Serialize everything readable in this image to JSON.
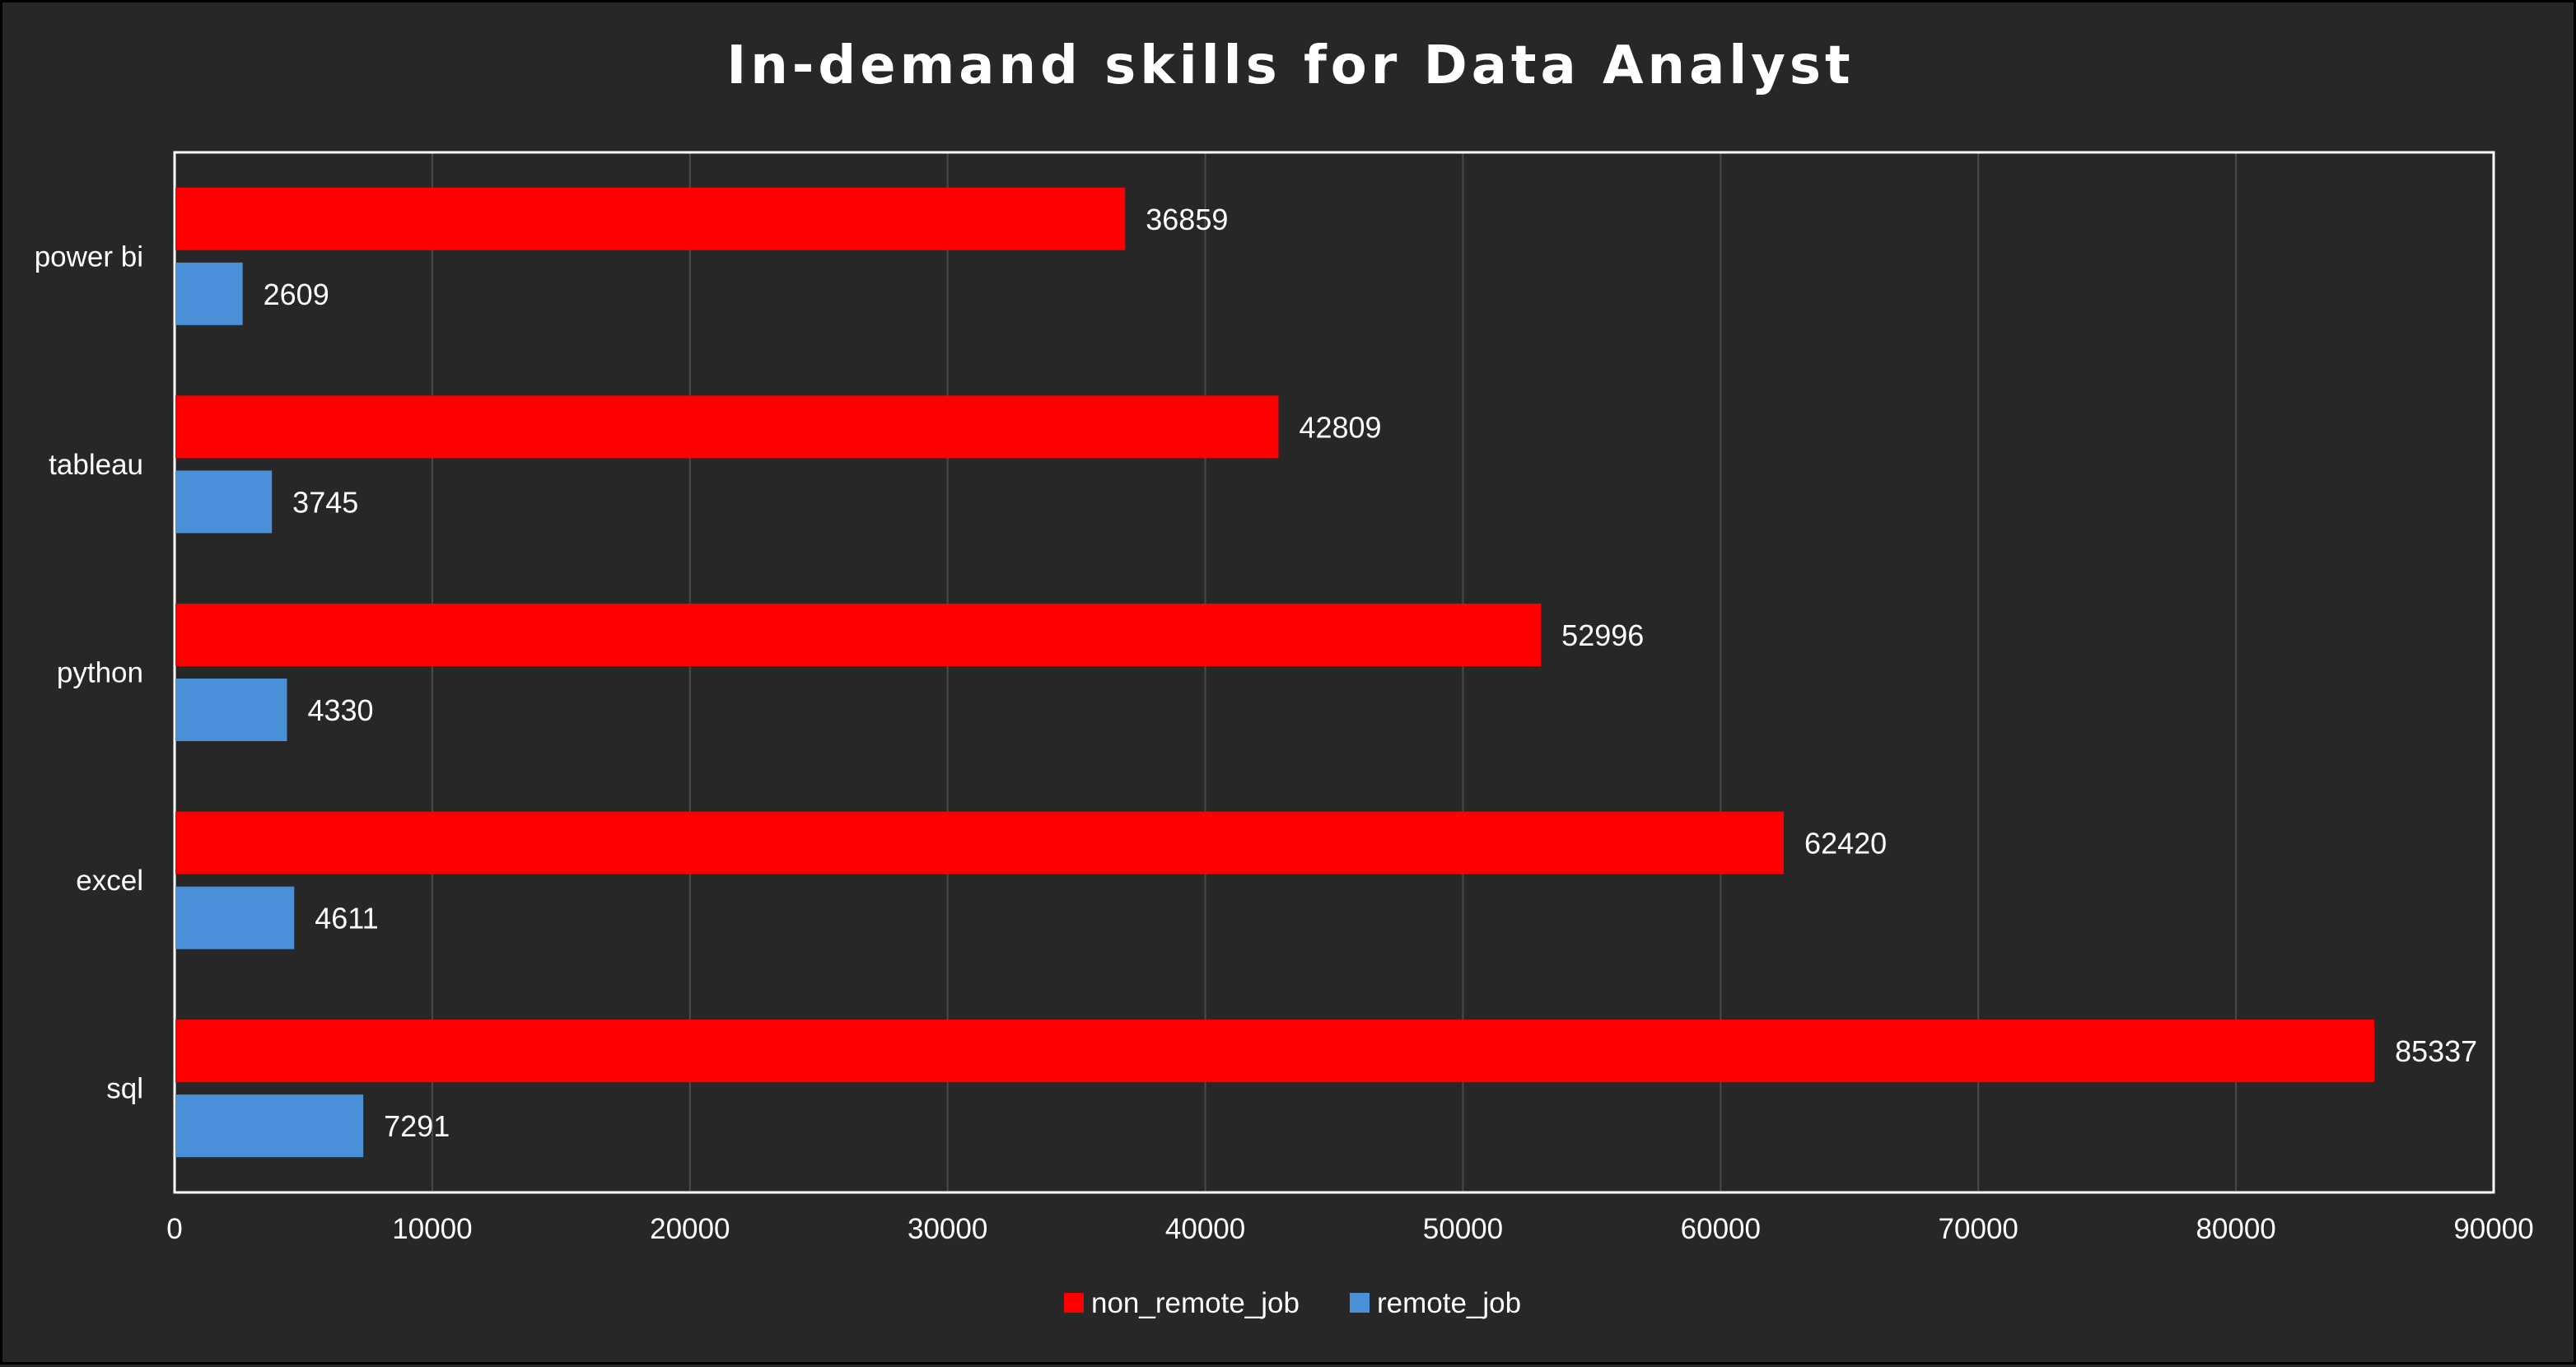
{
  "chart_data": {
    "type": "bar",
    "orientation": "horizontal",
    "title": "In-demand skills for Data Analyst",
    "categories": [
      "power bi",
      "tableau",
      "python",
      "excel",
      "sql"
    ],
    "series": [
      {
        "name": "non_remote_job",
        "color": "#ff0000",
        "values": [
          36859,
          42809,
          52996,
          62420,
          85337
        ]
      },
      {
        "name": "remote_job",
        "color": "#4a90d9",
        "values": [
          2609,
          3745,
          4330,
          4611,
          7291
        ]
      }
    ],
    "xlim": [
      0,
      90000
    ],
    "xticks": [
      "0",
      "10000",
      "20000",
      "30000",
      "40000",
      "50000",
      "60000",
      "70000",
      "80000",
      "90000"
    ],
    "grid": "vertical",
    "legend": "bottom",
    "data_labels": true,
    "colors": {
      "background": "#272727",
      "plot_border": "#ffffff",
      "grid": "#4a4a4a",
      "text": "#ffffff"
    }
  }
}
